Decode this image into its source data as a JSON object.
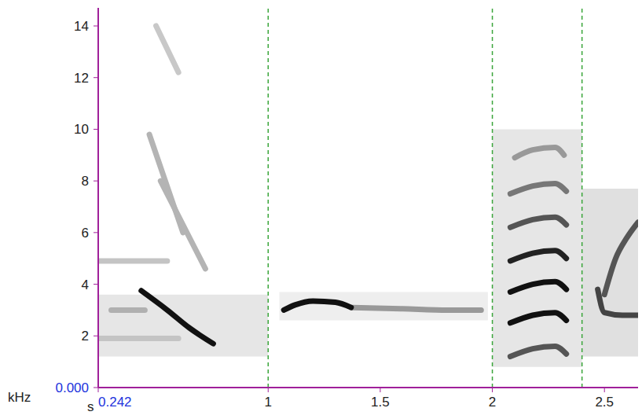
{
  "chart_data": {
    "type": "spectrogram",
    "x_label": "s",
    "y_label": "kHz",
    "xlim": [
      0.242,
      2.65
    ],
    "xticks": [
      0.242,
      1,
      1.5,
      2,
      2.5
    ],
    "ylim": [
      0,
      14.7
    ],
    "yticks": [
      {
        "value": 0,
        "label": "0.000"
      },
      2,
      4,
      6,
      8,
      10,
      12,
      14
    ],
    "grid": false,
    "boundaries": {
      "values": [
        1,
        2,
        2.4
      ],
      "color": "#3aa53a",
      "line_style": "dashed"
    },
    "noise": [
      {
        "x": [
          0.242,
          1
        ],
        "y": [
          1.2,
          3.6
        ],
        "color": "#e6e6e6"
      },
      {
        "x": [
          1.05,
          1.98
        ],
        "y": [
          2.6,
          3.7
        ],
        "color": "#eeeeee"
      },
      {
        "x": [
          2.0,
          2.4
        ],
        "y": [
          0.8,
          10
        ],
        "color": "#e6e6e6"
      },
      {
        "x": [
          2.4,
          2.65
        ],
        "y": [
          1.2,
          7.7
        ],
        "color": "#e0e0e0"
      }
    ],
    "series": [
      {
        "color": "#c4c4c4",
        "x": [
          0.242,
          0.55
        ],
        "values": [
          4.9,
          4.9
        ]
      },
      {
        "color": "#b0b0b0",
        "x": [
          0.3,
          0.45
        ],
        "values": [
          3.0,
          3.0
        ]
      },
      {
        "color": "#c4c4c4",
        "x": [
          0.242,
          0.6
        ],
        "values": [
          1.9,
          1.9
        ]
      },
      {
        "color": "#b4b4b4",
        "x": [
          0.47,
          0.62
        ],
        "values": [
          9.8,
          6.0
        ]
      },
      {
        "color": "#b4b4b4",
        "x": [
          0.52,
          0.72
        ],
        "values": [
          8.0,
          4.6
        ]
      },
      {
        "color": "#c8c8c8",
        "x": [
          0.5,
          0.6
        ],
        "values": [
          14.0,
          12.2
        ]
      },
      {
        "color": "#111111",
        "x": [
          0.434,
          0.55,
          0.65,
          0.755
        ],
        "values": [
          3.75,
          3.0,
          2.3,
          1.7
        ]
      },
      {
        "color": "#999999",
        "x": [
          1.37,
          1.6,
          1.8,
          1.95
        ],
        "values": [
          3.1,
          3.05,
          3.0,
          3.0
        ]
      },
      {
        "color": "#111111",
        "x": [
          1.07,
          1.12,
          1.2,
          1.3,
          1.37
        ],
        "values": [
          3.0,
          3.2,
          3.35,
          3.3,
          3.1
        ]
      },
      {
        "color": "#555555",
        "x": [
          2.08,
          2.18,
          2.28,
          2.33
        ],
        "values": [
          1.2,
          1.5,
          1.6,
          1.3
        ]
      },
      {
        "color": "#111111",
        "x": [
          2.08,
          2.18,
          2.28,
          2.33
        ],
        "values": [
          2.5,
          2.8,
          2.9,
          2.6
        ]
      },
      {
        "color": "#111111",
        "x": [
          2.08,
          2.18,
          2.28,
          2.33
        ],
        "values": [
          3.7,
          4.0,
          4.1,
          3.8
        ]
      },
      {
        "color": "#222222",
        "x": [
          2.08,
          2.18,
          2.28,
          2.33
        ],
        "values": [
          4.9,
          5.2,
          5.3,
          5.0
        ]
      },
      {
        "color": "#555555",
        "x": [
          2.08,
          2.18,
          2.28,
          2.33
        ],
        "values": [
          6.2,
          6.5,
          6.6,
          6.3
        ]
      },
      {
        "color": "#777777",
        "x": [
          2.08,
          2.18,
          2.28,
          2.33
        ],
        "values": [
          7.5,
          7.8,
          7.9,
          7.6
        ]
      },
      {
        "color": "#999999",
        "x": [
          2.1,
          2.18,
          2.28,
          2.32
        ],
        "values": [
          8.9,
          9.2,
          9.3,
          9.0
        ]
      },
      {
        "color": "#444444",
        "x": [
          2.47,
          2.5,
          2.58,
          2.65
        ],
        "values": [
          3.8,
          2.9,
          2.8,
          2.8
        ]
      },
      {
        "color": "#555555",
        "x": [
          2.5,
          2.55,
          2.6,
          2.65
        ],
        "values": [
          3.6,
          5.0,
          5.8,
          6.4
        ]
      }
    ]
  }
}
